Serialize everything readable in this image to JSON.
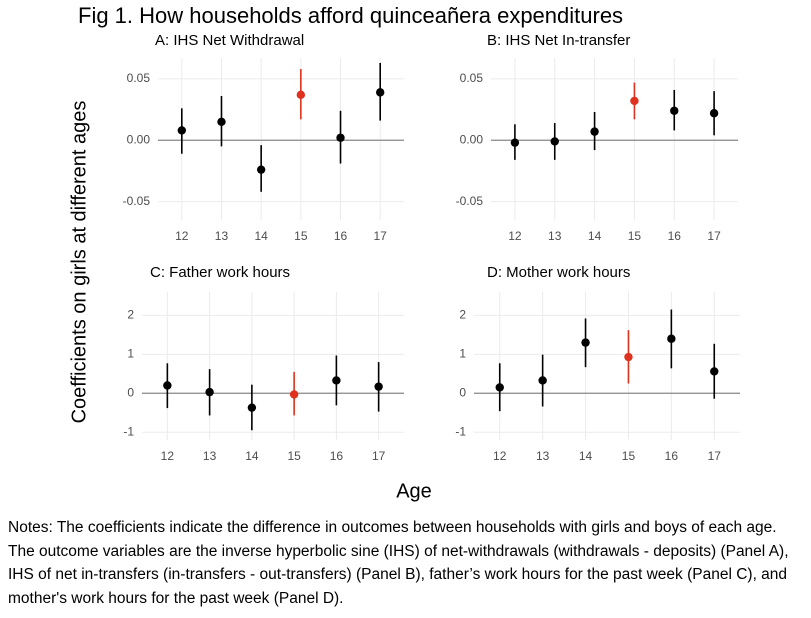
{
  "title": "Fig 1. How households afford quinceañera expenditures",
  "ylabel": "Coefficients on girls at different ages",
  "xlabel": "Age",
  "notes": "Notes: The coefficients indicate the difference in outcomes between households with girls and boys of each age. The outcome variables are the inverse hyperbolic sine (IHS) of net-withdrawals (withdrawals - deposits) (Panel A), IHS of net in-transfers (in-transfers - out-transfers) (Panel B), father’s work hours for the past week (Panel C), and mother's work hours for the past week (Panel D).",
  "chart_data": [
    {
      "type": "pointrange",
      "title": "A: IHS Net Withdrawal",
      "categories": [
        "12",
        "13",
        "14",
        "15",
        "16",
        "17"
      ],
      "values": [
        0.008,
        0.015,
        -0.024,
        0.037,
        0.002,
        0.039
      ],
      "lower": [
        -0.011,
        -0.005,
        -0.042,
        0.017,
        -0.019,
        0.016
      ],
      "upper": [
        0.026,
        0.036,
        -0.004,
        0.058,
        0.024,
        0.063
      ],
      "colors": [
        "#000000",
        "#000000",
        "#000000",
        "#e0301e",
        "#000000",
        "#000000"
      ],
      "ylim": [
        -0.065,
        0.067
      ],
      "yticks": [
        -0.05,
        {
          "value": 0,
          "label": "0.00"
        },
        0.05
      ],
      "grid": true,
      "zero_line": true
    },
    {
      "type": "pointrange",
      "title": "B: IHS Net In-transfer",
      "categories": [
        "12",
        "13",
        "14",
        "15",
        "16",
        "17"
      ],
      "values": [
        -0.002,
        -0.001,
        0.007,
        0.032,
        0.024,
        0.022
      ],
      "lower": [
        -0.016,
        -0.016,
        -0.008,
        0.017,
        0.008,
        0.004
      ],
      "upper": [
        0.013,
        0.014,
        0.023,
        0.047,
        0.041,
        0.04
      ],
      "colors": [
        "#000000",
        "#000000",
        "#000000",
        "#e0301e",
        "#000000",
        "#000000"
      ],
      "ylim": [
        -0.065,
        0.067
      ],
      "yticks": [
        -0.05,
        {
          "value": 0,
          "label": "0.00"
        },
        0.05
      ],
      "grid": true,
      "zero_line": true
    },
    {
      "type": "pointrange",
      "title": "C: Father work hours",
      "categories": [
        "12",
        "13",
        "14",
        "15",
        "16",
        "17"
      ],
      "values": [
        0.2,
        0.03,
        -0.37,
        -0.03,
        0.33,
        0.17
      ],
      "lower": [
        -0.38,
        -0.57,
        -0.95,
        -0.57,
        -0.31,
        -0.47
      ],
      "upper": [
        0.77,
        0.62,
        0.22,
        0.55,
        0.97,
        0.8
      ],
      "colors": [
        "#000000",
        "#000000",
        "#000000",
        "#e0301e",
        "#000000",
        "#000000"
      ],
      "ylim": [
        -1.2,
        2.6
      ],
      "yticks": [
        -1,
        0,
        1,
        2
      ],
      "grid": true,
      "zero_line": true
    },
    {
      "type": "pointrange",
      "title": "D: Mother work hours",
      "categories": [
        "12",
        "13",
        "14",
        "15",
        "16",
        "17"
      ],
      "values": [
        0.15,
        0.33,
        1.3,
        0.93,
        1.4,
        0.56
      ],
      "lower": [
        -0.46,
        -0.34,
        0.67,
        0.25,
        0.64,
        -0.14
      ],
      "upper": [
        0.77,
        0.99,
        1.92,
        1.62,
        2.15,
        1.27
      ],
      "colors": [
        "#000000",
        "#000000",
        "#000000",
        "#e0301e",
        "#000000",
        "#000000"
      ],
      "ylim": [
        -1.2,
        2.6
      ],
      "yticks": [
        -1,
        0,
        1,
        2
      ],
      "grid": true,
      "zero_line": true
    }
  ]
}
